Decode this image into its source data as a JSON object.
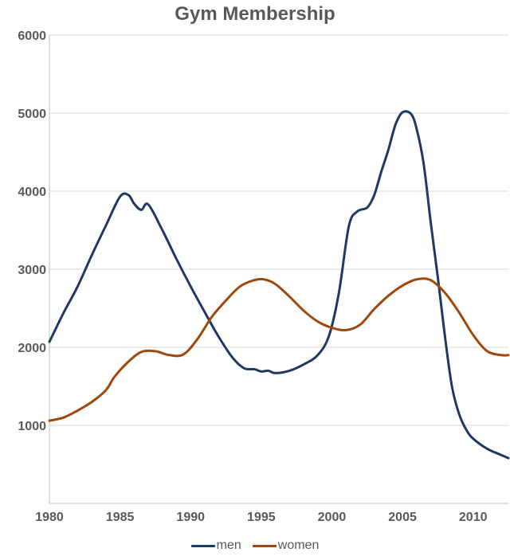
{
  "chart_data": {
    "type": "line",
    "title": "Gym Membership",
    "xlabel": "",
    "ylabel": "",
    "xlim": [
      1980,
      2012.5
    ],
    "ylim": [
      0,
      6000
    ],
    "x_ticks": [
      1980,
      1985,
      1990,
      1995,
      2000,
      2005,
      2010
    ],
    "y_ticks": [
      1000,
      2000,
      3000,
      4000,
      5000,
      6000
    ],
    "grid": true,
    "legend": "bottom",
    "series": [
      {
        "name": "men",
        "color": "#203864",
        "points": [
          [
            1980,
            2070
          ],
          [
            1981,
            2440
          ],
          [
            1982,
            2780
          ],
          [
            1983,
            3180
          ],
          [
            1984,
            3560
          ],
          [
            1985,
            3930
          ],
          [
            1985.6,
            3950
          ],
          [
            1986,
            3840
          ],
          [
            1986.5,
            3760
          ],
          [
            1987,
            3830
          ],
          [
            1988,
            3500
          ],
          [
            1989,
            3130
          ],
          [
            1990,
            2780
          ],
          [
            1991,
            2450
          ],
          [
            1992,
            2130
          ],
          [
            1993,
            1860
          ],
          [
            1993.8,
            1730
          ],
          [
            1994.5,
            1720
          ],
          [
            1995,
            1690
          ],
          [
            1995.5,
            1700
          ],
          [
            1996,
            1670
          ],
          [
            1997,
            1700
          ],
          [
            1998,
            1780
          ],
          [
            1999,
            1900
          ],
          [
            1999.8,
            2150
          ],
          [
            2000.5,
            2700
          ],
          [
            2001.2,
            3550
          ],
          [
            2001.8,
            3740
          ],
          [
            2002.5,
            3790
          ],
          [
            2003,
            3950
          ],
          [
            2003.5,
            4250
          ],
          [
            2004,
            4530
          ],
          [
            2004.5,
            4850
          ],
          [
            2005,
            5010
          ],
          [
            2005.6,
            4990
          ],
          [
            2006,
            4800
          ],
          [
            2006.5,
            4350
          ],
          [
            2007,
            3600
          ],
          [
            2007.5,
            2900
          ],
          [
            2008,
            2150
          ],
          [
            2008.5,
            1500
          ],
          [
            2009,
            1150
          ],
          [
            2009.5,
            950
          ],
          [
            2010,
            830
          ],
          [
            2011,
            700
          ],
          [
            2012,
            620
          ],
          [
            2012.5,
            580
          ]
        ]
      },
      {
        "name": "women",
        "color": "#9e480e",
        "points": [
          [
            1980,
            1060
          ],
          [
            1981,
            1100
          ],
          [
            1982,
            1190
          ],
          [
            1983,
            1300
          ],
          [
            1984,
            1450
          ],
          [
            1984.6,
            1620
          ],
          [
            1985.5,
            1800
          ],
          [
            1986.5,
            1940
          ],
          [
            1987.5,
            1950
          ],
          [
            1988.5,
            1900
          ],
          [
            1989.5,
            1910
          ],
          [
            1990.5,
            2110
          ],
          [
            1991.5,
            2390
          ],
          [
            1992.5,
            2600
          ],
          [
            1993.5,
            2780
          ],
          [
            1994.5,
            2860
          ],
          [
            1995.2,
            2870
          ],
          [
            1996,
            2810
          ],
          [
            1997,
            2650
          ],
          [
            1998,
            2470
          ],
          [
            1999,
            2330
          ],
          [
            2000,
            2250
          ],
          [
            2001,
            2220
          ],
          [
            2002,
            2290
          ],
          [
            2003,
            2490
          ],
          [
            2004,
            2660
          ],
          [
            2005,
            2790
          ],
          [
            2006,
            2870
          ],
          [
            2007,
            2860
          ],
          [
            2008,
            2700
          ],
          [
            2009,
            2450
          ],
          [
            2010,
            2160
          ],
          [
            2011,
            1950
          ],
          [
            2012,
            1900
          ],
          [
            2012.5,
            1900
          ]
        ]
      }
    ]
  }
}
